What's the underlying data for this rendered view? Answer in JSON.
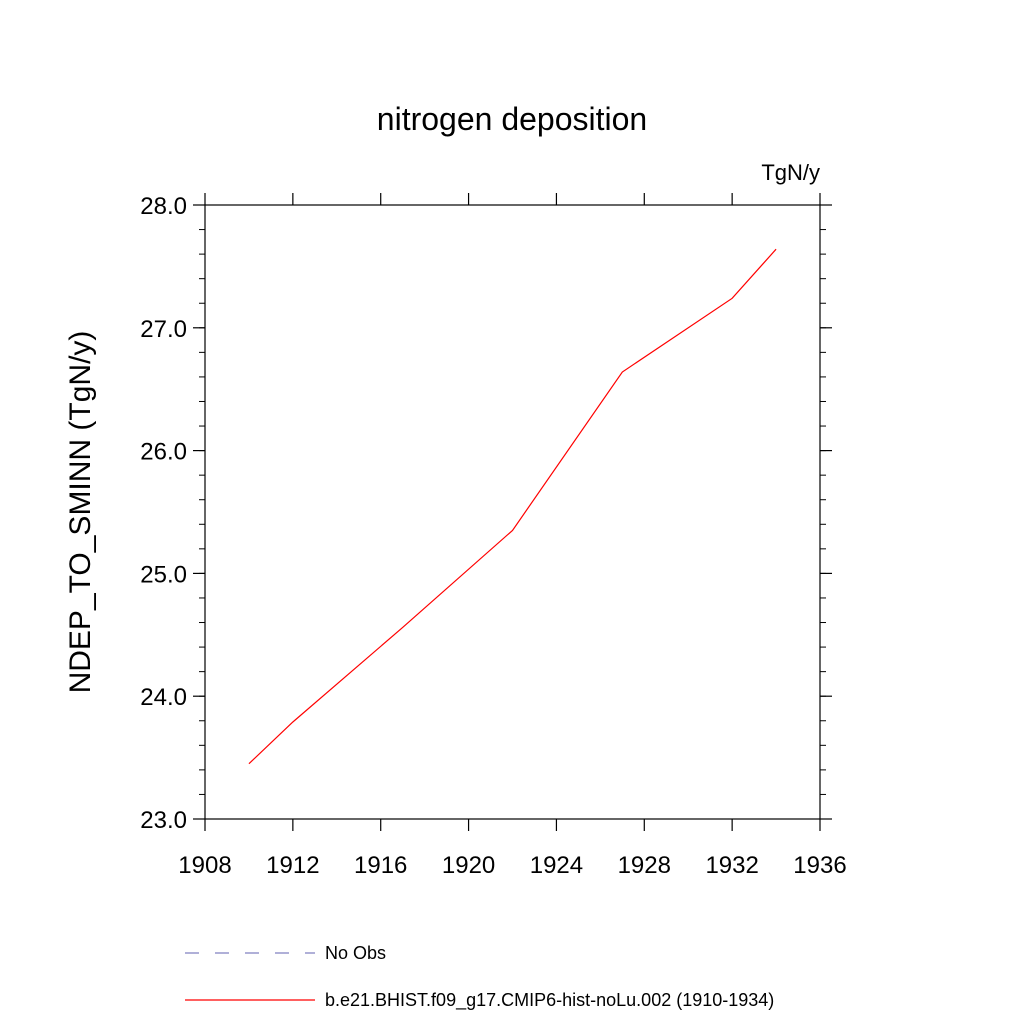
{
  "chart_data": {
    "type": "line",
    "title": "nitrogen deposition",
    "units": "TgN/y",
    "xlabel": "",
    "ylabel": "NDEP_TO_SMINN  (TgN/y)",
    "xlim": [
      1908,
      1936
    ],
    "ylim": [
      23.0,
      28.0
    ],
    "x_ticks": [
      1908,
      1912,
      1916,
      1920,
      1924,
      1928,
      1932,
      1936
    ],
    "x_tick_labels": [
      "1908",
      "1912",
      "1916",
      "1920",
      "1924",
      "1928",
      "1932",
      "1936"
    ],
    "y_ticks": [
      23.0,
      24.0,
      25.0,
      26.0,
      27.0,
      28.0
    ],
    "y_tick_labels": [
      "23.0",
      "24.0",
      "25.0",
      "26.0",
      "27.0",
      "28.0"
    ],
    "grid": false,
    "legend_position": "bottom",
    "series": [
      {
        "name": "No Obs",
        "color": "#8080c0",
        "style": "dashed",
        "x": [],
        "y": []
      },
      {
        "name": "b.e21.BHIST.f09_g17.CMIP6-hist-noLu.002 (1910-1934)",
        "color": "#ff0000",
        "style": "solid",
        "x": [
          1910,
          1912,
          1917,
          1922,
          1927,
          1932,
          1934
        ],
        "y": [
          23.45,
          23.79,
          24.56,
          25.35,
          26.64,
          27.24,
          27.64
        ]
      }
    ]
  }
}
